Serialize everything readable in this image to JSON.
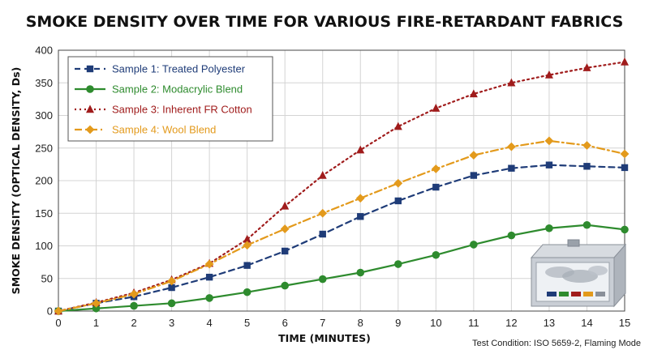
{
  "chart_data": {
    "type": "line",
    "title": "SMOKE DENSITY OVER TIME FOR VARIOUS FIRE-RETARDANT FABRICS",
    "xlabel": "TIME (MINUTES)",
    "ylabel": "SMOKE DENSITY (OPTICAL DENSITY, Ds)",
    "x": [
      0,
      1,
      2,
      3,
      4,
      5,
      6,
      7,
      8,
      9,
      10,
      11,
      12,
      13,
      14,
      15
    ],
    "xlim": [
      0,
      15
    ],
    "ylim": [
      0,
      400
    ],
    "xticks": [
      0,
      1,
      2,
      3,
      4,
      5,
      6,
      7,
      8,
      9,
      10,
      11,
      12,
      13,
      14,
      15
    ],
    "yticks": [
      0,
      50,
      100,
      150,
      200,
      250,
      300,
      350,
      400
    ],
    "grid": true,
    "legend_position": "top-left",
    "note": "Test Condition: ISO 5659-2, Flaming Mode",
    "series": [
      {
        "name": "Sample 1: Treated Polyester",
        "color": "#1f3c78",
        "marker": "square",
        "line_style": "dashed",
        "values": [
          0,
          12,
          22,
          36,
          52,
          70,
          92,
          118,
          145,
          169,
          190,
          208,
          219,
          224,
          222,
          220
        ]
      },
      {
        "name": "Sample 2: Modacrylic Blend",
        "color": "#2e8b2e",
        "marker": "circle",
        "line_style": "solid",
        "values": [
          0,
          4,
          8,
          12,
          20,
          29,
          39,
          49,
          59,
          72,
          86,
          102,
          116,
          127,
          132,
          125
        ]
      },
      {
        "name": "Sample 3: Inherent FR Cotton",
        "color": "#a01c1c",
        "marker": "triangle",
        "line_style": "dotted",
        "values": [
          0,
          13,
          28,
          48,
          73,
          110,
          161,
          208,
          247,
          283,
          311,
          333,
          350,
          362,
          373,
          382
        ]
      },
      {
        "name": "Sample 4: Wool Blend",
        "color": "#e39a1c",
        "marker": "diamond",
        "line_style": "dashdot",
        "values": [
          0,
          12,
          26,
          46,
          72,
          101,
          126,
          150,
          173,
          196,
          218,
          239,
          252,
          261,
          254,
          241
        ]
      }
    ]
  }
}
